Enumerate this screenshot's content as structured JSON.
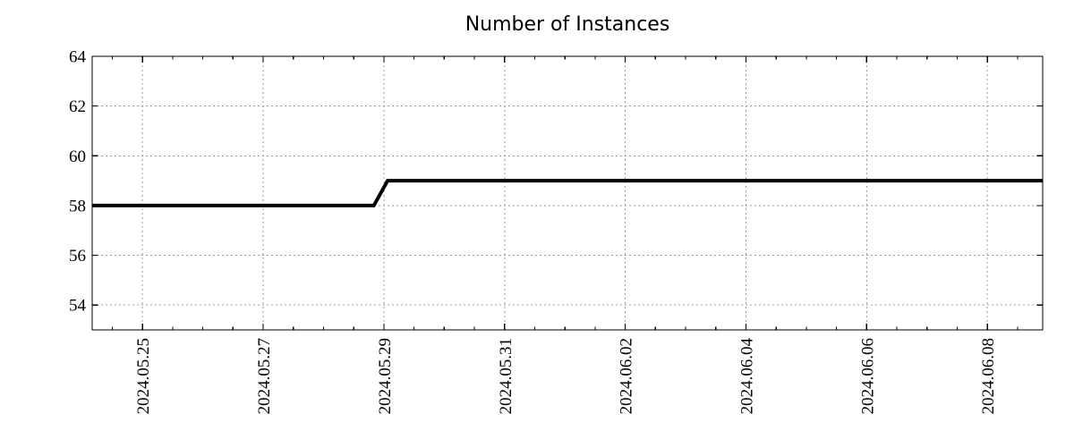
{
  "chart_data": {
    "type": "line",
    "title": "Number of Instances",
    "xlabel": "",
    "ylabel": "",
    "legend": "none",
    "background_color": "#ffffff",
    "axis_color": "#000000",
    "text_color": "#000000",
    "x": [
      "2024-05-24 04:00",
      "2024-05-28 20:00",
      "2024-05-29 01:30",
      "2024-06-08 22:00"
    ],
    "series": [
      {
        "name": "instances",
        "values": [
          58,
          58,
          59,
          59
        ],
        "color": "#000000",
        "line_width": 4
      }
    ],
    "x_range": [
      "2024-05-24 04:00",
      "2024-06-08 22:00"
    ],
    "x_major_ticks": [
      {
        "date": "2024-05-25",
        "label": "2024.05.25"
      },
      {
        "date": "2024-05-27",
        "label": "2024.05.27"
      },
      {
        "date": "2024-05-29",
        "label": "2024.05.29"
      },
      {
        "date": "2024-05-31",
        "label": "2024.05.31"
      },
      {
        "date": "2024-06-02",
        "label": "2024.06.02"
      },
      {
        "date": "2024-06-04",
        "label": "2024.06.04"
      },
      {
        "date": "2024-06-06",
        "label": "2024.06.06"
      },
      {
        "date": "2024-06-08",
        "label": "2024.06.08"
      }
    ],
    "x_minor_interval_hours": 12,
    "x_label_rotation": -90,
    "ylim": [
      53,
      64
    ],
    "y_ticks": [
      54,
      56,
      58,
      60,
      62,
      64
    ],
    "grid": {
      "show": true,
      "style": "dotted",
      "color": "#999999"
    }
  }
}
